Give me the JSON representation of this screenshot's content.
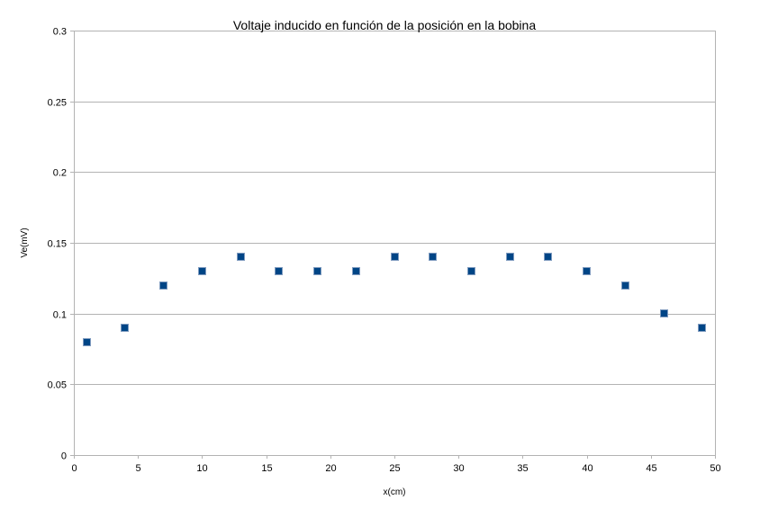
{
  "chart_data": {
    "type": "scatter",
    "title": "Voltaje inducido en función de la posición en la bobina",
    "xlabel": "x(cm)",
    "ylabel": "Ve(mV)",
    "xlim": [
      0,
      50
    ],
    "ylim": [
      0,
      0.3
    ],
    "xticks": [
      0,
      5,
      10,
      15,
      20,
      25,
      30,
      35,
      40,
      45,
      50
    ],
    "yticks": [
      0,
      0.05,
      0.1,
      0.15,
      0.2,
      0.25,
      0.3
    ],
    "xtick_labels": [
      "0",
      "5",
      "10",
      "15",
      "20",
      "25",
      "30",
      "35",
      "40",
      "45",
      "50"
    ],
    "ytick_labels": [
      "0",
      "0.05",
      "0.1",
      "0.15",
      "0.2",
      "0.25",
      "0.3"
    ],
    "grid": "horizontal",
    "legend": "none",
    "marker": "square",
    "marker_color": "#004586",
    "series": [
      {
        "x": [
          1,
          4,
          7,
          10,
          13,
          16,
          19,
          22,
          25,
          28,
          31,
          34,
          37,
          40,
          43,
          46,
          49
        ],
        "y": [
          0.08,
          0.09,
          0.12,
          0.13,
          0.14,
          0.13,
          0.13,
          0.13,
          0.14,
          0.14,
          0.13,
          0.14,
          0.14,
          0.13,
          0.12,
          0.1,
          0.09
        ]
      }
    ]
  }
}
